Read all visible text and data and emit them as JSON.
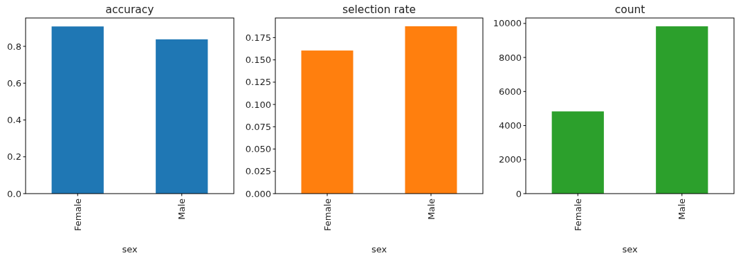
{
  "chart_data": [
    {
      "type": "bar",
      "title": "accuracy",
      "xlabel": "sex",
      "categories": [
        "Female",
        "Male"
      ],
      "values": [
        0.908,
        0.838
      ],
      "color": "#1f77b4",
      "ylim": [
        0,
        0.954
      ],
      "yticks": [
        {
          "value": 0,
          "label": "0.0"
        },
        {
          "value": 0.2,
          "label": "0.2"
        },
        {
          "value": 0.4,
          "label": "0.4"
        },
        {
          "value": 0.6,
          "label": "0.6"
        },
        {
          "value": 0.8,
          "label": "0.8"
        }
      ]
    },
    {
      "type": "bar",
      "title": "selection rate",
      "xlabel": "sex",
      "categories": [
        "Female",
        "Male"
      ],
      "values": [
        0.1605,
        0.1877
      ],
      "color": "#ff7f0e",
      "ylim": [
        0,
        0.197
      ],
      "yticks": [
        {
          "value": 0,
          "label": "0.000"
        },
        {
          "value": 0.025,
          "label": "0.025"
        },
        {
          "value": 0.05,
          "label": "0.050"
        },
        {
          "value": 0.075,
          "label": "0.075"
        },
        {
          "value": 0.1,
          "label": "0.100"
        },
        {
          "value": 0.125,
          "label": "0.125"
        },
        {
          "value": 0.15,
          "label": "0.150"
        },
        {
          "value": 0.175,
          "label": "0.175"
        }
      ]
    },
    {
      "type": "bar",
      "title": "count",
      "xlabel": "sex",
      "categories": [
        "Female",
        "Male"
      ],
      "values": [
        4830,
        9830
      ],
      "color": "#2ca02c",
      "ylim": [
        0,
        10320
      ],
      "yticks": [
        0,
        2000,
        4000,
        6000,
        8000,
        10000
      ]
    }
  ]
}
